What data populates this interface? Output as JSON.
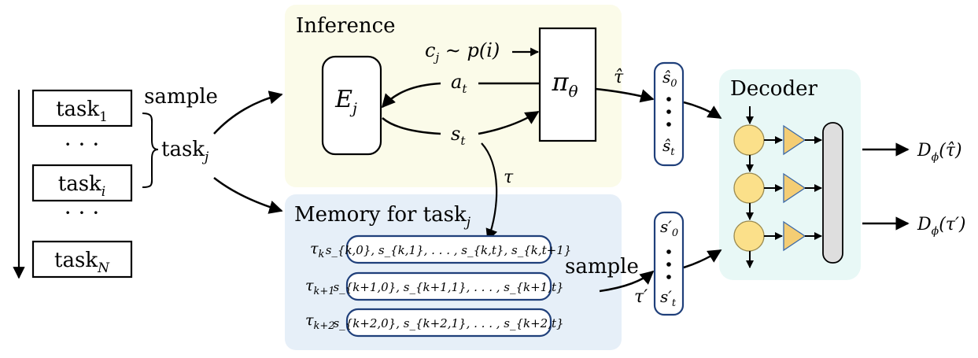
{
  "task_list": {
    "items": [
      {
        "base": "task",
        "sub": "1"
      },
      {
        "dots": "· · ·"
      },
      {
        "base": "task",
        "sub": "i"
      },
      {
        "dots": "· · ·"
      },
      {
        "base": "task",
        "sub": "N"
      }
    ]
  },
  "sample_label_left": "sample",
  "selected_task": {
    "base": "task",
    "sub": "j"
  },
  "inference": {
    "title": "Inference",
    "encoder": {
      "base": "E",
      "sub": "j"
    },
    "policy": {
      "base": "π",
      "sub": "θ"
    },
    "context": {
      "base": "c",
      "sub": "j",
      "rest": " ∼ p(i)"
    },
    "action": {
      "base": "a",
      "sub": "t"
    },
    "state": {
      "base": "s",
      "sub": "t"
    }
  },
  "tau_label": "τ",
  "tau_hat_label": "τ̂",
  "predicted_states": {
    "first": {
      "base": "ŝ",
      "sub": "0"
    },
    "last": {
      "base": "ŝ",
      "sub": "t"
    }
  },
  "memory": {
    "title_prefix": "Memory for task",
    "title_sub": "j",
    "rows": [
      {
        "tau": {
          "base": "τ",
          "sub": "k"
        },
        "seq": "s_{k,0}, s_{k,1}, . . . , s_{k,t}, s_{k,t+1}"
      },
      {
        "tau": {
          "base": "τ",
          "sub": "k+1"
        },
        "seq": "s_{k+1,0}, s_{k+1,1}, . . . , s_{k+1,t}"
      },
      {
        "tau": {
          "base": "τ",
          "sub": "k+2"
        },
        "seq": "s_{k+2,0}, s_{k+2,1}, . . . , s_{k+2,t}"
      }
    ]
  },
  "sample_label_right": "sample",
  "tau_prime_label": "τ′",
  "sampled_states": {
    "first": {
      "base": "s′",
      "sub": "0"
    },
    "last": {
      "base": "s′",
      "sub": "t"
    }
  },
  "decoder": {
    "title": "Decoder"
  },
  "outputs": [
    {
      "base": "D",
      "sub": "ϕ",
      "arg": "(τ̂)"
    },
    {
      "base": "D",
      "sub": "ϕ",
      "arg": "(τ′)"
    }
  ],
  "colors": {
    "inference_bg": "#fbfbe9",
    "memory_bg": "#e6eff8",
    "decoder_bg": "#e8f8f6",
    "pill_border": "#1f3f7a",
    "neuron_fill": "#fbe08a",
    "neuron_stroke": "#9a8a50",
    "triangle_fill": "#f4cd74",
    "triangle_stroke": "#3d6aa8",
    "bar_fill": "#dedede"
  }
}
